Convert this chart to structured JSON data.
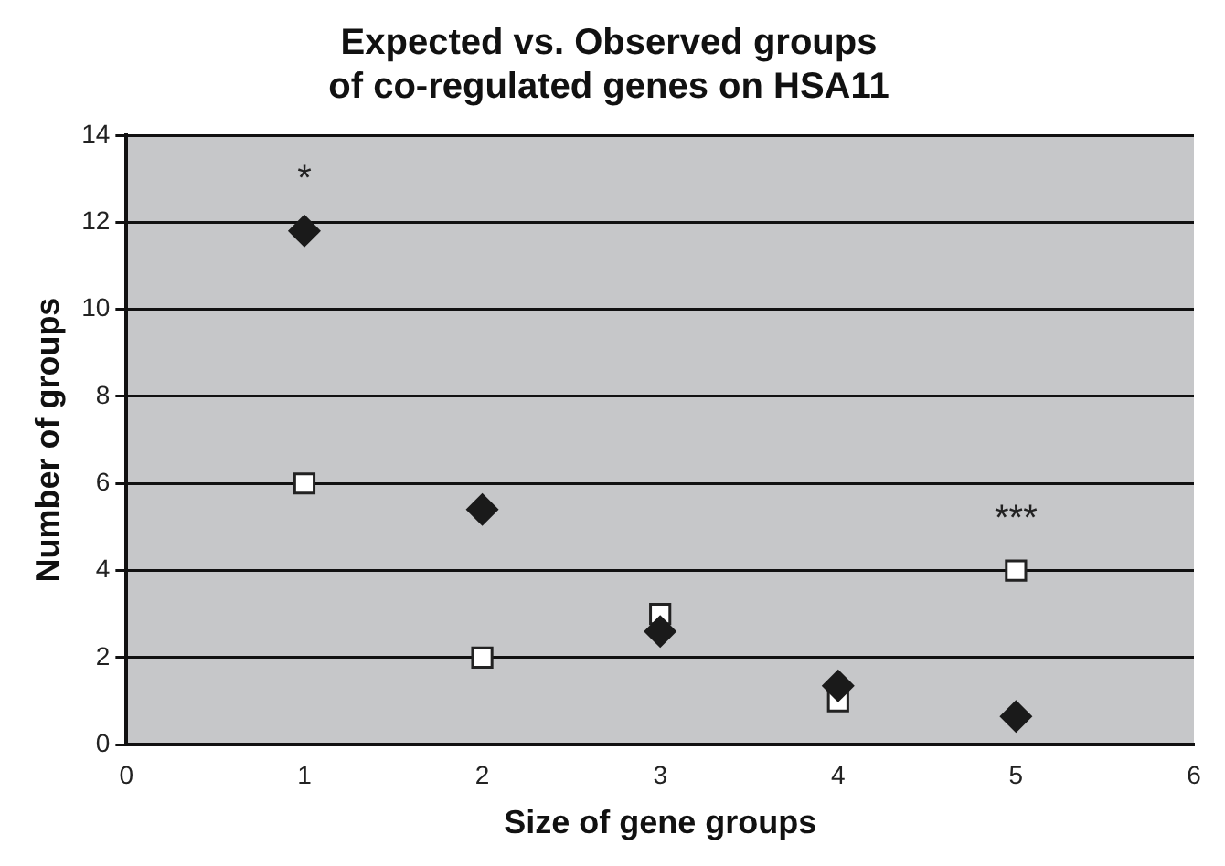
{
  "chart_data": {
    "type": "scatter",
    "title": "Expected vs. Observed groups\nof co-regulated genes on HSA11",
    "xlabel": "Size of gene groups",
    "ylabel": "Number of groups",
    "x": [
      1,
      2,
      3,
      4,
      5
    ],
    "series": [
      {
        "color": "#1a1a1a",
        "marker": "diamond",
        "values": [
          11.8,
          5.4,
          2.6,
          1.35,
          0.65
        ]
      },
      {
        "color": "#ffffff",
        "marker": "square",
        "values": [
          6,
          2,
          3,
          1,
          4
        ]
      }
    ],
    "xlim": [
      0,
      6
    ],
    "xticks": [
      0,
      1,
      2,
      3,
      4,
      5,
      6
    ],
    "ylim": [
      0,
      14
    ],
    "yticks": [
      0,
      2,
      4,
      6,
      8,
      10,
      12,
      14
    ],
    "grid": "y",
    "legend": false,
    "annotations": [
      {
        "text": "*",
        "x": 1,
        "y": 11.8
      },
      {
        "text": "***",
        "x": 5,
        "y": 4
      }
    ]
  }
}
